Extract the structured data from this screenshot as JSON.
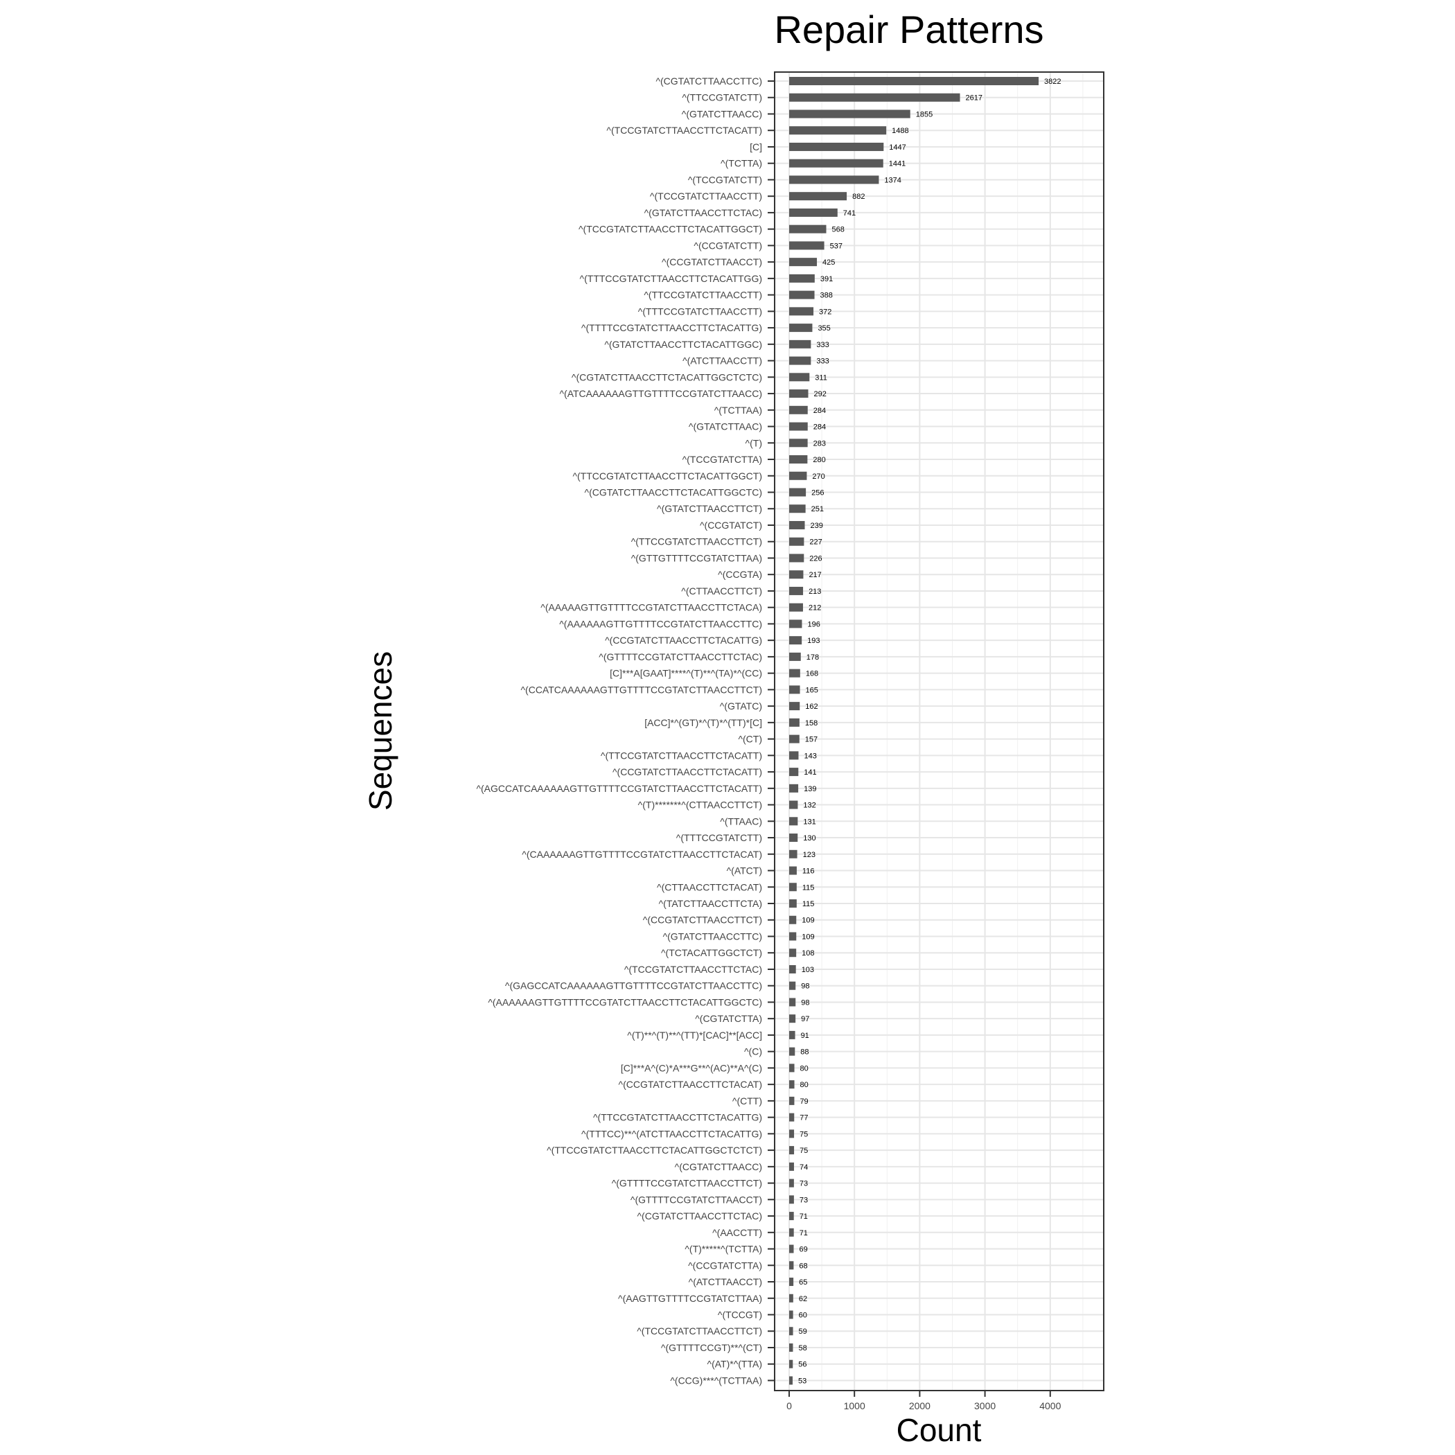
{
  "chart_data": {
    "type": "bar",
    "orientation": "horizontal",
    "title": "Repair Patterns",
    "xlabel": "Count",
    "ylabel": "Sequences",
    "xlim": [
      0,
      4500
    ],
    "xticks": [
      0,
      1000,
      2000,
      3000,
      4000
    ],
    "grid": true,
    "bar_color": "#595959",
    "categories": [
      "^(CGTATCTTAACCTTC)",
      "^(TTCCGTATCTT)",
      "^(GTATCTTAACC)",
      "^(TCCGTATCTTAACCTTCTACATT)",
      "[C]",
      "^(TCTTA)",
      "^(TCCGTATCTT)",
      "^(TCCGTATCTTAACCTT)",
      "^(GTATCTTAACCTTCTAC)",
      "^(TCCGTATCTTAACCTTCTACATTGGCT)",
      "^(CCGTATCTT)",
      "^(CCGTATCTTAACCT)",
      "^(TTTCCGTATCTTAACCTTCTACATTGG)",
      "^(TTCCGTATCTTAACCTT)",
      "^(TTTCCGTATCTTAACCTT)",
      "^(TTTTCCGTATCTTAACCTTCTACATTG)",
      "^(GTATCTTAACCTTCTACATTGGC)",
      "^(ATCTTAACCTT)",
      "^(CGTATCTTAACCTTCTACATTGGCTCTC)",
      "^(ATCAAAAAAGTTGTTTTCCGTATCTTAACC)",
      "^(TCTTAA)",
      "^(GTATCTTAAC)",
      "^(T)",
      "^(TCCGTATCTTA)",
      "^(TTCCGTATCTTAACCTTCTACATTGGCT)",
      "^(CGTATCTTAACCTTCTACATTGGCTC)",
      "^(GTATCTTAACCTTCT)",
      "^(CCGTATCT)",
      "^(TTCCGTATCTTAACCTTCT)",
      "^(GTTGTTTTCCGTATCTTAA)",
      "^(CCGTA)",
      "^(CTTAACCTTCT)",
      "^(AAAAAGTTGTTTTCCGTATCTTAACCTTCTACA)",
      "^(AAAAAAGTTGTTTTCCGTATCTTAACCTTC)",
      "^(CCGTATCTTAACCTTCTACATTG)",
      "^(GTTTTCCGTATCTTAACCTTCTAC)",
      "[C]***A[GAAT]****^(T)**^(TA)*^(CC)",
      "^(CCATCAAAAAAGTTGTTTTCCGTATCTTAACCTTCT)",
      "^(GTATC)",
      "[ACC]*^(GT)*^(T)*^(TT)*[C]",
      "^(CT)",
      "^(TTCCGTATCTTAACCTTCTACATT)",
      "^(CCGTATCTTAACCTTCTACATT)",
      "^(AGCCATCAAAAAAGTTGTTTTCCGTATCTTAACCTTCTACATT)",
      "^(T)*******^(CTTAACCTTCT)",
      "^(TTAAC)",
      "^(TTTCCGTATCTT)",
      "^(CAAAAAAGTTGTTTTCCGTATCTTAACCTTCTACAT)",
      "^(ATCT)",
      "^(CTTAACCTTCTACAT)",
      "^(TATCTTAACCTTCTA)",
      "^(CCGTATCTTAACCTTCT)",
      "^(GTATCTTAACCTTC)",
      "^(TCTACATTGGCTCT)",
      "^(TCCGTATCTTAACCTTCTAC)",
      "^(GAGCCATCAAAAAAGTTGTTTTCCGTATCTTAACCTTC)",
      "^(AAAAAAGTTGTTTTCCGTATCTTAACCTTCTACATTGGCTC)",
      "^(CGTATCTTA)",
      "^(T)**^(T)**^(TT)*[CAC]**[ACC]",
      "^(C)",
      "[C]***A^(C)*A***G**^(AC)**A^(C)",
      "^(CCGTATCTTAACCTTCTACAT)",
      "^(CTT)",
      "^(TTCCGTATCTTAACCTTCTACATTG)",
      "^(TTTCC)**^(ATCTTAACCTTCTACATTG)",
      "^(TTCCGTATCTTAACCTTCTACATTGGCTCTCT)",
      "^(CGTATCTTAACC)",
      "^(GTTTTCCGTATCTTAACCTTCT)",
      "^(GTTTTCCGTATCTTAACCT)",
      "^(CGTATCTTAACCTTCTAC)",
      "^(AACCTT)",
      "^(T)*****^(TCTTA)",
      "^(CCGTATCTTA)",
      "^(ATCTTAACCT)",
      "^(AAGTTGTTTTCCGTATCTTAA)",
      "^(TCCGT)",
      "^(TCCGTATCTTAACCTTCT)",
      "^(GTTTTCCGT)**^(CT)",
      "^(AT)*^(TTA)",
      "^(CCG)***^(TCTTAA)"
    ],
    "values": [
      3822,
      2617,
      1855,
      1488,
      1447,
      1441,
      1374,
      882,
      741,
      568,
      537,
      425,
      391,
      388,
      372,
      355,
      333,
      333,
      311,
      292,
      284,
      284,
      283,
      280,
      270,
      256,
      251,
      239,
      227,
      226,
      217,
      213,
      212,
      196,
      193,
      178,
      168,
      165,
      162,
      158,
      157,
      143,
      141,
      139,
      132,
      131,
      130,
      123,
      116,
      115,
      115,
      109,
      109,
      108,
      103,
      98,
      98,
      97,
      91,
      88,
      80,
      80,
      79,
      77,
      75,
      75,
      74,
      73,
      73,
      71,
      71,
      69,
      68,
      65,
      62,
      60,
      59,
      58,
      56,
      53
    ]
  }
}
